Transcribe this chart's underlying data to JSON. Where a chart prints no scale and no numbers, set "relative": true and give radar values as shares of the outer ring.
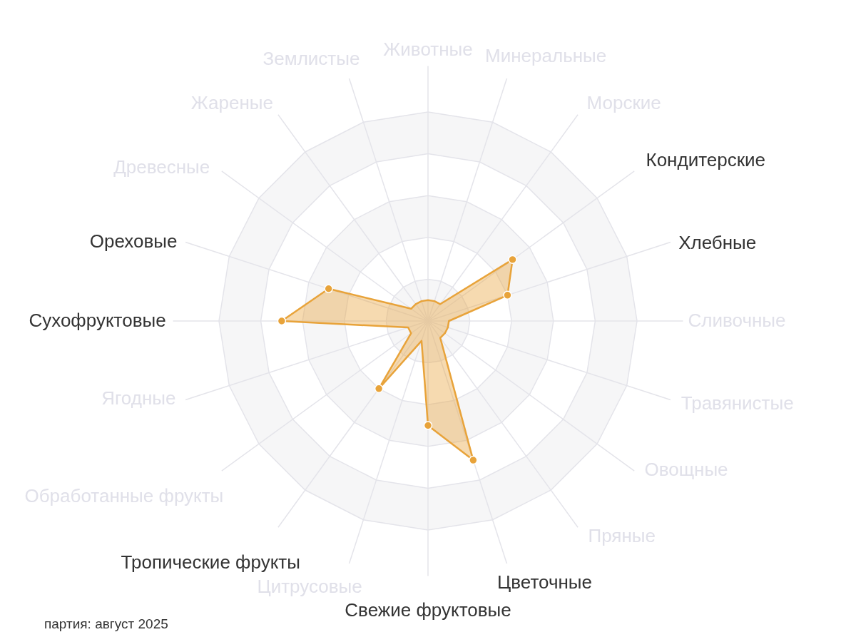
{
  "chart_data": {
    "type": "radar",
    "relative": true,
    "grid": true,
    "marker": "circle",
    "categories": [
      "Животные",
      "Минеральные",
      "Морские",
      "Кондитерские",
      "Хлебные",
      "Сливочные",
      "Травянистые",
      "Овощные",
      "Пряные",
      "Цветочные",
      "Свежие фруктовые",
      "Цитрусовые",
      "Тропические фрукты",
      "Обработанные фрукты",
      "Ягодные",
      "Сухофруктовые",
      "Ореховые",
      "Древесные",
      "Жареные",
      "Землистые"
    ],
    "series": [
      {
        "color": "#e8a33a",
        "values": [
          0.1,
          0.1,
          0.1,
          0.5,
          0.4,
          0.1,
          0.1,
          0.1,
          0.1,
          0.7,
          0.5,
          0.1,
          0.4,
          0.1,
          0.1,
          0.7,
          0.5,
          0.1,
          0.1,
          0.1
        ]
      }
    ],
    "annotations": [
      "партия: август 2025"
    ]
  }
}
